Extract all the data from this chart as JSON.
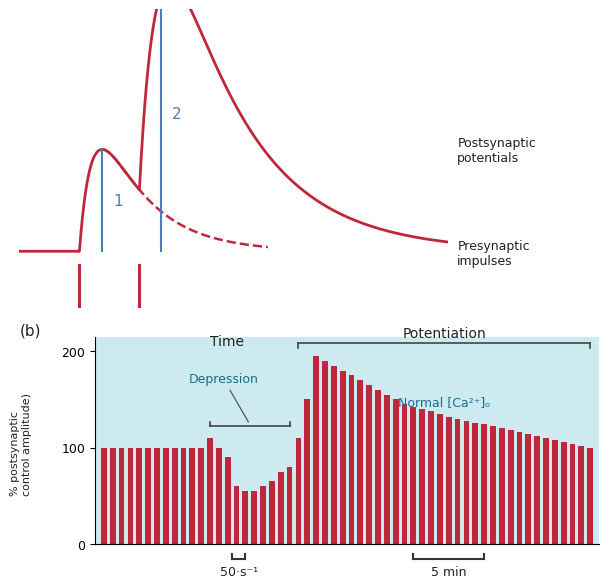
{
  "bg_color": "#bde0e8",
  "bg_color_b": "#cceaf0",
  "red_color": "#c0273a",
  "blue_color": "#4a7fb5",
  "text_color": "#222222",
  "dark_teal": "#1a6e8a",
  "panel_a": {
    "postsynaptic_label": "Postsynaptic\npotentials",
    "presynaptic_label": "Presynaptic\nimpulses",
    "time_label": "Time"
  },
  "panel_b": {
    "label": "(b)",
    "ylabel": "% postsynaptic\ncontrol amplitude)",
    "potentiation_label": "Potentiation",
    "depression_label": "Depression",
    "normal_ca_label": "Normal [Ca²⁺]ₒ",
    "scale1_label": "50·s⁻¹",
    "scale2_label": "5 min",
    "bar_vals": [
      100,
      100,
      100,
      100,
      100,
      100,
      100,
      100,
      100,
      100,
      100,
      100,
      110,
      100,
      90,
      60,
      55,
      55,
      60,
      65,
      75,
      80,
      110,
      150,
      195,
      190,
      185,
      180,
      175,
      170,
      165,
      160,
      155,
      150,
      145,
      142,
      140,
      138,
      135,
      132,
      130,
      128,
      126,
      124,
      122,
      120,
      118,
      116,
      114,
      112,
      110,
      108,
      106,
      104,
      102,
      100
    ]
  }
}
